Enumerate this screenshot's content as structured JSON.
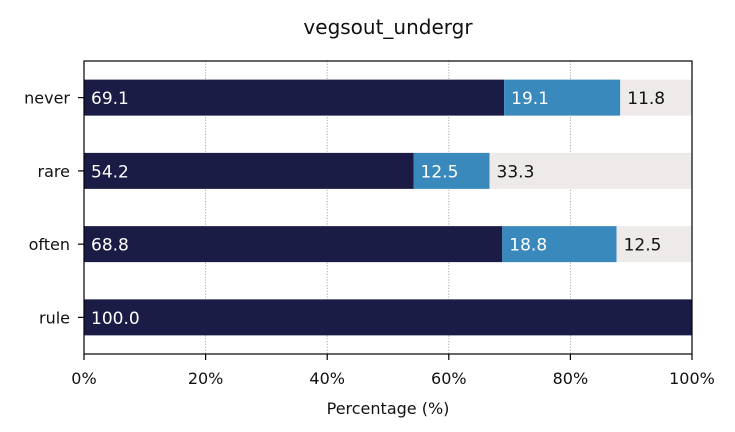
{
  "chart_data": {
    "type": "bar",
    "orientation": "horizontal",
    "stacked": true,
    "title": "vegsout_undergr",
    "xlabel": "Percentage (%)",
    "ylabel": "",
    "xlim": [
      0,
      100
    ],
    "x_ticks": [
      {
        "value": 0,
        "label": "0%"
      },
      {
        "value": 20,
        "label": "20%"
      },
      {
        "value": 40,
        "label": "40%"
      },
      {
        "value": 60,
        "label": "60%"
      },
      {
        "value": 80,
        "label": "80%"
      },
      {
        "value": 100,
        "label": "100%"
      }
    ],
    "grid": "vertical dotted",
    "legend": "none",
    "categories": [
      "never",
      "rare",
      "often",
      "rule"
    ],
    "series": [
      {
        "values": [
          69.1,
          54.2,
          68.8,
          100.0
        ],
        "labels": [
          "69.1",
          "54.2",
          "68.8",
          "100.0"
        ],
        "color": "#1b1c45",
        "label_color": "#ffffff"
      },
      {
        "values": [
          19.1,
          12.5,
          18.8,
          0
        ],
        "labels": [
          "19.1",
          "12.5",
          "18.8",
          ""
        ],
        "color": "#3a89bd",
        "label_color": "#ffffff"
      },
      {
        "values": [
          11.8,
          33.3,
          12.5,
          0
        ],
        "labels": [
          "11.8",
          "33.3",
          "12.5",
          ""
        ],
        "color": "#efeaea",
        "label_color": "#111111"
      }
    ]
  }
}
